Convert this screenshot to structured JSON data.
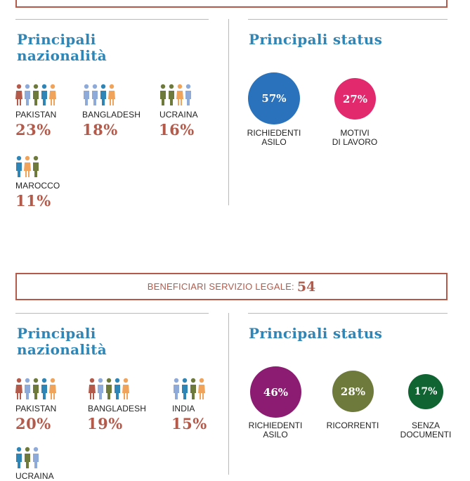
{
  "colors": {
    "heading": "#2f86b6",
    "accent_red": "#b35a4a",
    "divider": "#e2b565"
  },
  "section1": {
    "nat_heading": "Principali\nnazionalità",
    "status_heading": "Principali status",
    "nationalities": [
      {
        "name": "PAKISTAN",
        "pct": "23%",
        "icon": "people-icon-5"
      },
      {
        "name": "BANGLADESH",
        "pct": "18%",
        "icon": "people-icon-4"
      },
      {
        "name": "UCRAINA",
        "pct": "16%",
        "icon": "people-icon-4"
      },
      {
        "name": "MAROCCO",
        "pct": "11%",
        "icon": "people-icon-3"
      }
    ],
    "statuses": [
      {
        "pct": "57%",
        "label": "RICHIEDENTI\nASILO",
        "color": "#2a72bb"
      },
      {
        "pct": "27%",
        "label": "MOTIVI\nDI LAVORO",
        "color": "#e3296e"
      }
    ]
  },
  "banner": {
    "label": "BENEFICIARI SERVIZIO LEGALE:",
    "value": "54"
  },
  "section2": {
    "nat_heading": "Principali\nnazionalità",
    "status_heading": "Principali status",
    "nationalities": [
      {
        "name": "PAKISTAN",
        "pct": "20%",
        "icon": "people-icon-5"
      },
      {
        "name": "BANGLADESH",
        "pct": "19%",
        "icon": "people-icon-5"
      },
      {
        "name": "INDIA",
        "pct": "15%",
        "icon": "people-icon-4"
      },
      {
        "name": "UCRAINA",
        "pct": "",
        "icon": "people-icon-3"
      }
    ],
    "statuses": [
      {
        "pct": "46%",
        "label": "RICHIEDENTI\nASILO",
        "color": "#8b1c72"
      },
      {
        "pct": "28%",
        "label": "RICORRENTI",
        "color": "#6e7a3c"
      },
      {
        "pct": "17%",
        "label": "SENZA\nDOCUMENTI",
        "color": "#0f6432"
      }
    ]
  }
}
